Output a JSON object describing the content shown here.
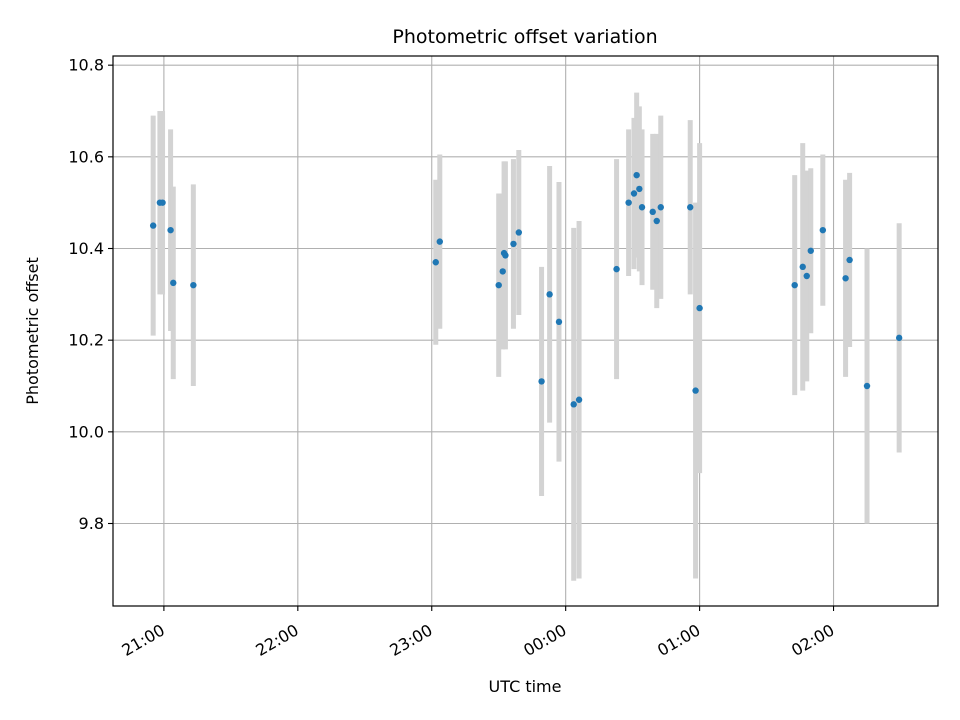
{
  "chart_data": {
    "type": "scatter",
    "title": "Photometric offset variation",
    "xlabel": "UTC time",
    "ylabel": "Photometric offset",
    "x_unit": "UTC time (hours since 00:00; values after midnight continue past 24)",
    "xlim": [
      20.62,
      26.78
    ],
    "ylim": [
      9.62,
      10.82
    ],
    "grid": true,
    "legend": "none",
    "colors": {
      "point": "#1f77b4",
      "errorbar": "#d3d3d3",
      "grid": "#b0b0b0"
    },
    "x_ticks": [
      {
        "value": 21,
        "label": "21:00"
      },
      {
        "value": 22,
        "label": "22:00"
      },
      {
        "value": 23,
        "label": "23:00"
      },
      {
        "value": 24,
        "label": "00:00"
      },
      {
        "value": 25,
        "label": "01:00"
      },
      {
        "value": 26,
        "label": "02:00"
      }
    ],
    "y_ticks": [
      {
        "value": 9.8,
        "label": "9.8"
      },
      {
        "value": 10.0,
        "label": "10.0"
      },
      {
        "value": 10.2,
        "label": "10.2"
      },
      {
        "value": 10.4,
        "label": "10.4"
      },
      {
        "value": 10.6,
        "label": "10.6"
      },
      {
        "value": 10.8,
        "label": "10.8"
      }
    ],
    "series": [
      {
        "points": [
          {
            "x": 20.92,
            "y": 10.45,
            "err": 0.24
          },
          {
            "x": 20.97,
            "y": 10.5,
            "err": 0.2
          },
          {
            "x": 20.99,
            "y": 10.5,
            "err": 0.2
          },
          {
            "x": 21.05,
            "y": 10.44,
            "err": 0.22
          },
          {
            "x": 21.07,
            "y": 10.325,
            "err": 0.21
          },
          {
            "x": 21.22,
            "y": 10.32,
            "err": 0.22
          },
          {
            "x": 23.03,
            "y": 10.37,
            "err": 0.18
          },
          {
            "x": 23.06,
            "y": 10.415,
            "err": 0.19
          },
          {
            "x": 23.5,
            "y": 10.32,
            "err": 0.2
          },
          {
            "x": 23.53,
            "y": 10.35,
            "err": 0.17
          },
          {
            "x": 23.54,
            "y": 10.39,
            "err": 0.2
          },
          {
            "x": 23.55,
            "y": 10.385,
            "err": 0.205
          },
          {
            "x": 23.61,
            "y": 10.41,
            "err": 0.185
          },
          {
            "x": 23.65,
            "y": 10.435,
            "err": 0.18
          },
          {
            "x": 23.82,
            "y": 10.11,
            "err": 0.25
          },
          {
            "x": 23.88,
            "y": 10.3,
            "err": 0.28
          },
          {
            "x": 23.95,
            "y": 10.24,
            "err": 0.305
          },
          {
            "x": 24.06,
            "y": 10.06,
            "err": 0.385
          },
          {
            "x": 24.1,
            "y": 10.07,
            "err": 0.39
          },
          {
            "x": 24.38,
            "y": 10.355,
            "err": 0.24
          },
          {
            "x": 24.47,
            "y": 10.5,
            "err": 0.16
          },
          {
            "x": 24.51,
            "y": 10.52,
            "err": 0.165
          },
          {
            "x": 24.53,
            "y": 10.56,
            "err": 0.18
          },
          {
            "x": 24.55,
            "y": 10.53,
            "err": 0.18
          },
          {
            "x": 24.57,
            "y": 10.49,
            "err": 0.17
          },
          {
            "x": 24.65,
            "y": 10.48,
            "err": 0.17
          },
          {
            "x": 24.68,
            "y": 10.46,
            "err": 0.19
          },
          {
            "x": 24.71,
            "y": 10.49,
            "err": 0.2
          },
          {
            "x": 24.93,
            "y": 10.49,
            "err": 0.19
          },
          {
            "x": 24.97,
            "y": 10.09,
            "err": 0.41
          },
          {
            "x": 25,
            "y": 10.27,
            "err": 0.36
          },
          {
            "x": 25.71,
            "y": 10.32,
            "err": 0.24
          },
          {
            "x": 25.77,
            "y": 10.36,
            "err": 0.27
          },
          {
            "x": 25.8,
            "y": 10.34,
            "err": 0.23
          },
          {
            "x": 25.83,
            "y": 10.395,
            "err": 0.18
          },
          {
            "x": 25.92,
            "y": 10.44,
            "err": 0.165
          },
          {
            "x": 26.09,
            "y": 10.335,
            "err": 0.215
          },
          {
            "x": 26.12,
            "y": 10.375,
            "err": 0.19
          },
          {
            "x": 26.25,
            "y": 10.1,
            "err": 0.3
          },
          {
            "x": 26.49,
            "y": 10.205,
            "err": 0.25
          }
        ]
      }
    ]
  }
}
